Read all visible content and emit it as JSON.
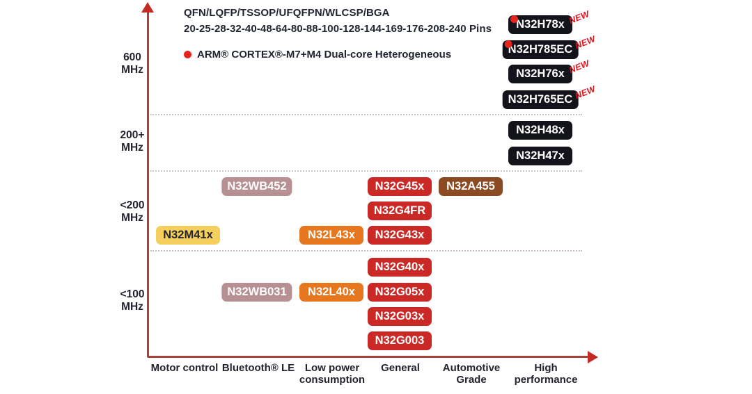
{
  "header": {
    "packages_line": "QFN/LQFP/TSSOP/UFQFPN/WLCSP/BGA",
    "pins_line": "20-25-28-32-40-48-64-80-88-100-128-144-169-176-208-240 Pins",
    "legend_label": "ARM® CORTEX®-M7+M4 Dual-core Heterogeneous"
  },
  "palette": {
    "red": "#CB2926",
    "orange": "#E7771E",
    "mauve": "#B69093",
    "yellow": "#F5CF5D",
    "brown": "#8B4A21",
    "dark": "#13131B",
    "new_tag": "#E8101C",
    "dot_red": "#E8241E",
    "axis_line": "#A84138",
    "axis_arrow": "#C32A22",
    "yellow_text": "#26262E"
  },
  "chart_data": {
    "type": "scatter",
    "title": "",
    "annotations": [
      "QFN/LQFP/TSSOP/UFQFPN/WLCSP/BGA",
      "20-25-28-32-40-48-64-80-88-100-128-144-169-176-208-240 Pins"
    ],
    "legend": {
      "marker": "red-dot",
      "label": "ARM® CORTEX®-M7+M4 Dual-core Heterogeneous",
      "position": "top-left"
    },
    "grid": "dotted horizontal separators between frequency bands",
    "new_tag_label": "NEW",
    "x_axis": {
      "categories": [
        "Motor control",
        "Bluetooth® LE",
        "Low power consumption",
        "General",
        "Automotive Grade",
        "High performance"
      ]
    },
    "y_axis": {
      "bands": [
        "600 MHz",
        "200+ MHz",
        "<200 MHz",
        "<100 MHz"
      ]
    },
    "products": [
      {
        "name": "N32H78x",
        "category": "High performance",
        "band": "600 MHz",
        "slot": 0,
        "color": "dark",
        "new": true,
        "dual_core": true
      },
      {
        "name": "N32H785EC",
        "category": "High performance",
        "band": "600 MHz",
        "slot": 1,
        "color": "dark",
        "new": true,
        "dual_core": true
      },
      {
        "name": "N32H76x",
        "category": "High performance",
        "band": "600 MHz",
        "slot": 2,
        "color": "dark",
        "new": true,
        "dual_core": false
      },
      {
        "name": "N32H765EC",
        "category": "High performance",
        "band": "600 MHz",
        "slot": 3,
        "color": "dark",
        "new": true,
        "dual_core": false
      },
      {
        "name": "N32H48x",
        "category": "High performance",
        "band": "200+ MHz",
        "slot": 0,
        "color": "dark",
        "new": false,
        "dual_core": false
      },
      {
        "name": "N32H47x",
        "category": "High performance",
        "band": "200+ MHz",
        "slot": 1,
        "color": "dark",
        "new": false,
        "dual_core": false
      },
      {
        "name": "N32WB452",
        "category": "Bluetooth® LE",
        "band": "<200 MHz",
        "slot": 0,
        "color": "mauve",
        "new": false,
        "dual_core": false
      },
      {
        "name": "N32G45x",
        "category": "General",
        "band": "<200 MHz",
        "slot": 0,
        "color": "red",
        "new": false,
        "dual_core": false
      },
      {
        "name": "N32A455",
        "category": "Automotive Grade",
        "band": "<200 MHz",
        "slot": 0,
        "color": "brown",
        "new": false,
        "dual_core": false
      },
      {
        "name": "N32G4FR",
        "category": "General",
        "band": "<200 MHz",
        "slot": 1,
        "color": "red",
        "new": false,
        "dual_core": false
      },
      {
        "name": "N32M41x",
        "category": "Motor control",
        "band": "<200 MHz",
        "slot": 2,
        "color": "yellow",
        "new": false,
        "dual_core": false
      },
      {
        "name": "N32L43x",
        "category": "Low power consumption",
        "band": "<200 MHz",
        "slot": 2,
        "color": "orange",
        "new": false,
        "dual_core": false
      },
      {
        "name": "N32G43x",
        "category": "General",
        "band": "<200 MHz",
        "slot": 2,
        "color": "red",
        "new": false,
        "dual_core": false
      },
      {
        "name": "N32G40x",
        "category": "General",
        "band": "<100 MHz",
        "slot": 0,
        "color": "red",
        "new": false,
        "dual_core": false
      },
      {
        "name": "N32WB031",
        "category": "Bluetooth® LE",
        "band": "<100 MHz",
        "slot": 1,
        "color": "mauve",
        "new": false,
        "dual_core": false
      },
      {
        "name": "N32L40x",
        "category": "Low power consumption",
        "band": "<100 MHz",
        "slot": 1,
        "color": "orange",
        "new": false,
        "dual_core": false
      },
      {
        "name": "N32G05x",
        "category": "General",
        "band": "<100 MHz",
        "slot": 1,
        "color": "red",
        "new": false,
        "dual_core": false
      },
      {
        "name": "N32G03x",
        "category": "General",
        "band": "<100 MHz",
        "slot": 2,
        "color": "red",
        "new": false,
        "dual_core": false
      },
      {
        "name": "N32G003",
        "category": "General",
        "band": "<100 MHz",
        "slot": 3,
        "color": "red",
        "new": false,
        "dual_core": false
      }
    ]
  }
}
